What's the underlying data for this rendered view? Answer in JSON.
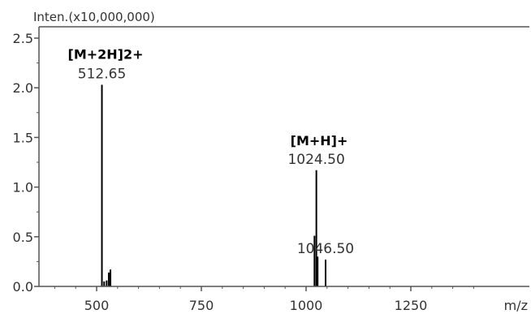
{
  "chart_data": {
    "type": "bar",
    "title": "",
    "ylabel": "Inten.(x10,000,000)",
    "xlabel": "m/z",
    "xlim": [
      400,
      1400
    ],
    "ylim": [
      0,
      2.5
    ],
    "x_ticks": [
      500,
      750,
      1000,
      1250
    ],
    "x_tick_labels": [
      "500",
      "750",
      "1000",
      "1250"
    ],
    "y_ticks": [
      0.0,
      0.5,
      1.0,
      1.5,
      2.0,
      2.5
    ],
    "y_tick_labels": [
      "0.0",
      "0.5",
      "1.0",
      "1.5",
      "2.0",
      "2.5"
    ],
    "peaks": [
      {
        "x": 512.65,
        "y": 2.03
      },
      {
        "x": 518,
        "y": 0.05
      },
      {
        "x": 524,
        "y": 0.06
      },
      {
        "x": 529,
        "y": 0.14
      },
      {
        "x": 533,
        "y": 0.17
      },
      {
        "x": 1024.5,
        "y": 1.17
      },
      {
        "x": 1020,
        "y": 0.51
      },
      {
        "x": 1027.5,
        "y": 0.3
      },
      {
        "x": 1046.5,
        "y": 0.27
      }
    ],
    "peak_labels": [
      {
        "x": 512.65,
        "y": 2.03,
        "text": "512.65"
      },
      {
        "x": 1024.5,
        "y": 1.17,
        "text": "1024.50"
      },
      {
        "x": 1046.5,
        "y": 0.27,
        "text": "1046.50"
      }
    ],
    "annotations": [
      {
        "x": 512.65,
        "text": "[M+2H]2+"
      },
      {
        "x": 1024.5,
        "text": "[M+H]+"
      }
    ],
    "grid": false,
    "colors": {
      "axis": "#555555",
      "bar": "#000000",
      "text": "#333333"
    }
  }
}
